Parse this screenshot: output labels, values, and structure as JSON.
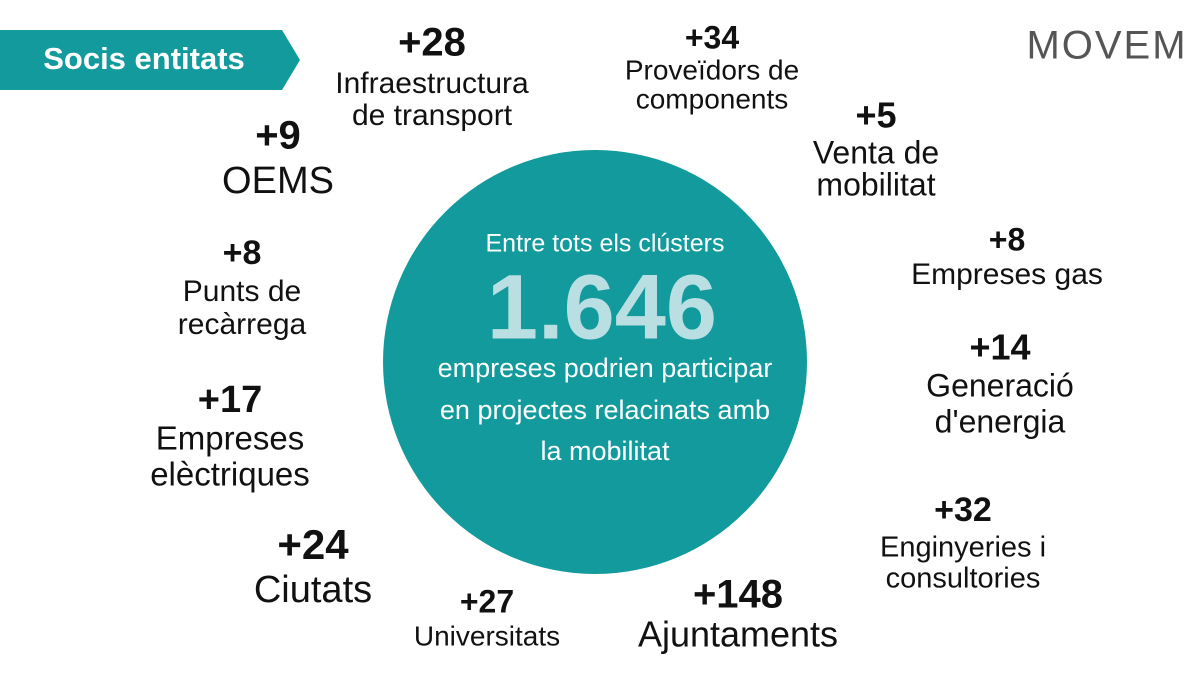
{
  "header": {
    "tag": "Socis entitats",
    "logo": "MOVEM"
  },
  "center": {
    "intro": "Entre tots els clústers",
    "total": "1.646",
    "lines": [
      "empreses podrien participar",
      "en projectes relacinats amb",
      "la mobilitat"
    ]
  },
  "items": [
    {
      "number": "+28",
      "label": [
        "Infraestructura",
        "de transport"
      ]
    },
    {
      "number": "+34",
      "label": [
        "Proveïdors de",
        "components"
      ]
    },
    {
      "number": "+5",
      "label": [
        "Venta de",
        "mobilitat"
      ]
    },
    {
      "number": "+9",
      "label": [
        "OEMS"
      ]
    },
    {
      "number": "+8",
      "label": [
        "Empreses gas"
      ]
    },
    {
      "number": "+8",
      "label": [
        "Punts de",
        "recàrrega"
      ]
    },
    {
      "number": "+14",
      "label": [
        "Generació",
        "d'energia"
      ]
    },
    {
      "number": "+17",
      "label": [
        "Empreses",
        "elèctriques"
      ]
    },
    {
      "number": "+32",
      "label": [
        "Enginyeries i",
        "consultories"
      ]
    },
    {
      "number": "+24",
      "label": [
        "Ciutats"
      ]
    },
    {
      "number": "+27",
      "label": [
        "Universitats"
      ]
    },
    {
      "number": "+148",
      "label": [
        "Ajuntaments"
      ]
    }
  ]
}
